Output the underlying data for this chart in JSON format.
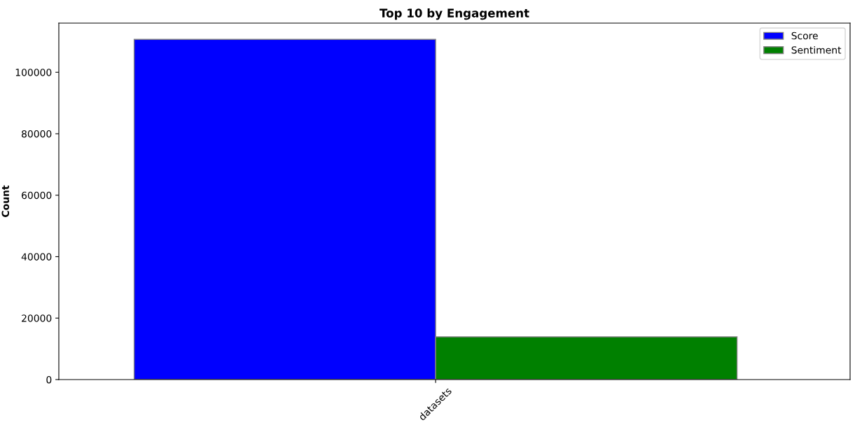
{
  "chart_data": {
    "type": "bar",
    "title": "Top 10 by Engagement",
    "ylabel": "Count",
    "categories": [
      "datasets"
    ],
    "series": [
      {
        "name": "Score",
        "color": "#0000ff",
        "values": [
          110700
        ]
      },
      {
        "name": "Sentiment",
        "color": "#008000",
        "values": [
          13900
        ]
      }
    ],
    "ylim": [
      0,
      116000
    ],
    "yticks": [
      0,
      20000,
      40000,
      60000,
      80000,
      100000
    ],
    "grid": false,
    "legend": "top right"
  }
}
